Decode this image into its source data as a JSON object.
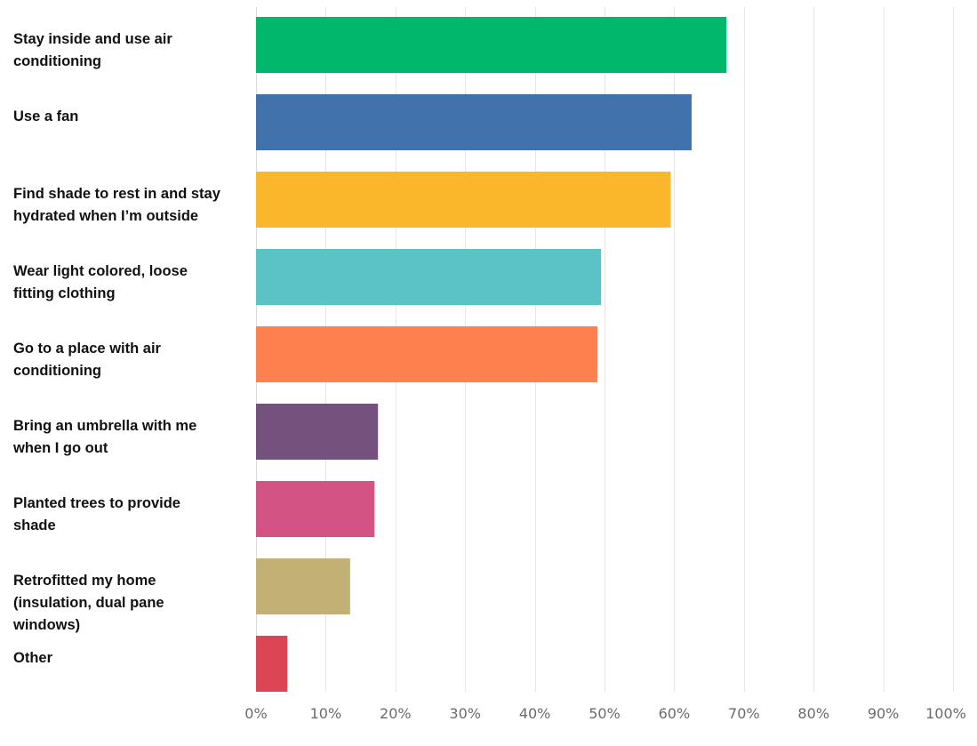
{
  "chart_data": {
    "type": "bar",
    "orientation": "horizontal",
    "categories": [
      "Stay inside and use air conditioning",
      "Use a fan",
      "Find shade to rest in and stay hydrated when I’m outside",
      "Wear light colored, loose fitting clothing",
      "Go to a place with air conditioning",
      "Bring an umbrella with me when I go out",
      "Planted trees to provide shade",
      "Retrofitted my home (insulation, dual pane windows)",
      "Other"
    ],
    "category_label_lines": [
      [
        "Stay inside and use air",
        "conditioning"
      ],
      [
        "Use a fan"
      ],
      [
        "Find shade to rest in and stay",
        "hydrated when I’m outside"
      ],
      [
        "Wear light colored, loose",
        "fitting clothing"
      ],
      [
        "Go to a place with air",
        "conditioning"
      ],
      [
        "Bring an umbrella with me",
        "when I go out"
      ],
      [
        "Planted trees to provide",
        "shade"
      ],
      [
        "Retrofitted my home",
        "(insulation, dual pane",
        "windows)"
      ],
      [
        "Other"
      ]
    ],
    "values": [
      67.5,
      62.5,
      59.5,
      49.5,
      49,
      17.5,
      17,
      13.5,
      4.5
    ],
    "colors": [
      "#00b86b",
      "#4272ab",
      "#fbb72c",
      "#5bc3c6",
      "#ff8150",
      "#73527e",
      "#d45385",
      "#c1b175",
      "#dc4553"
    ],
    "xlim": [
      0,
      100
    ],
    "ticks": [
      0,
      10,
      20,
      30,
      40,
      50,
      60,
      70,
      80,
      90,
      100
    ],
    "tick_labels": [
      "0%",
      "10%",
      "20%",
      "30%",
      "40%",
      "50%",
      "60%",
      "70%",
      "80%",
      "90%",
      "100%"
    ],
    "grid": true,
    "title": "",
    "xlabel": "",
    "ylabel": ""
  }
}
